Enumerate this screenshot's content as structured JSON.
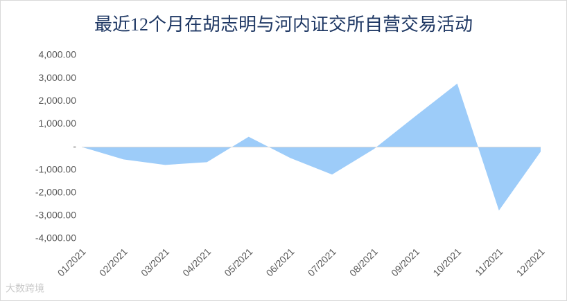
{
  "chart_data": {
    "type": "area",
    "title": "最近12个月在胡志明与河内证交所自营交易活动",
    "categories": [
      "01/2021",
      "02/2021",
      "03/2021",
      "04/2021",
      "05/2021",
      "06/2021",
      "07/2021",
      "08/2021",
      "09/2021",
      "10/2021",
      "11/2021",
      "12/2021"
    ],
    "values": [
      0,
      -540,
      -780,
      -660,
      450,
      -480,
      -1200,
      -90,
      1350,
      2770,
      -2770,
      -200
    ],
    "color": "#9dccf9",
    "ylim": [
      -4000,
      4000
    ],
    "yticks": [
      {
        "value": -4000,
        "label": "-4,000.00"
      },
      {
        "value": -3000,
        "label": "-3,000.00"
      },
      {
        "value": -2000,
        "label": "-2,000.00"
      },
      {
        "value": -1000,
        "label": "-1,000.00"
      },
      {
        "value": 0,
        "label": "-"
      },
      {
        "value": 1000,
        "label": "1,000.00"
      },
      {
        "value": 2000,
        "label": "2,000.00"
      },
      {
        "value": 3000,
        "label": "3,000.00"
      },
      {
        "value": 4000,
        "label": "4,000.00"
      }
    ],
    "watermark": "大数跨境"
  }
}
